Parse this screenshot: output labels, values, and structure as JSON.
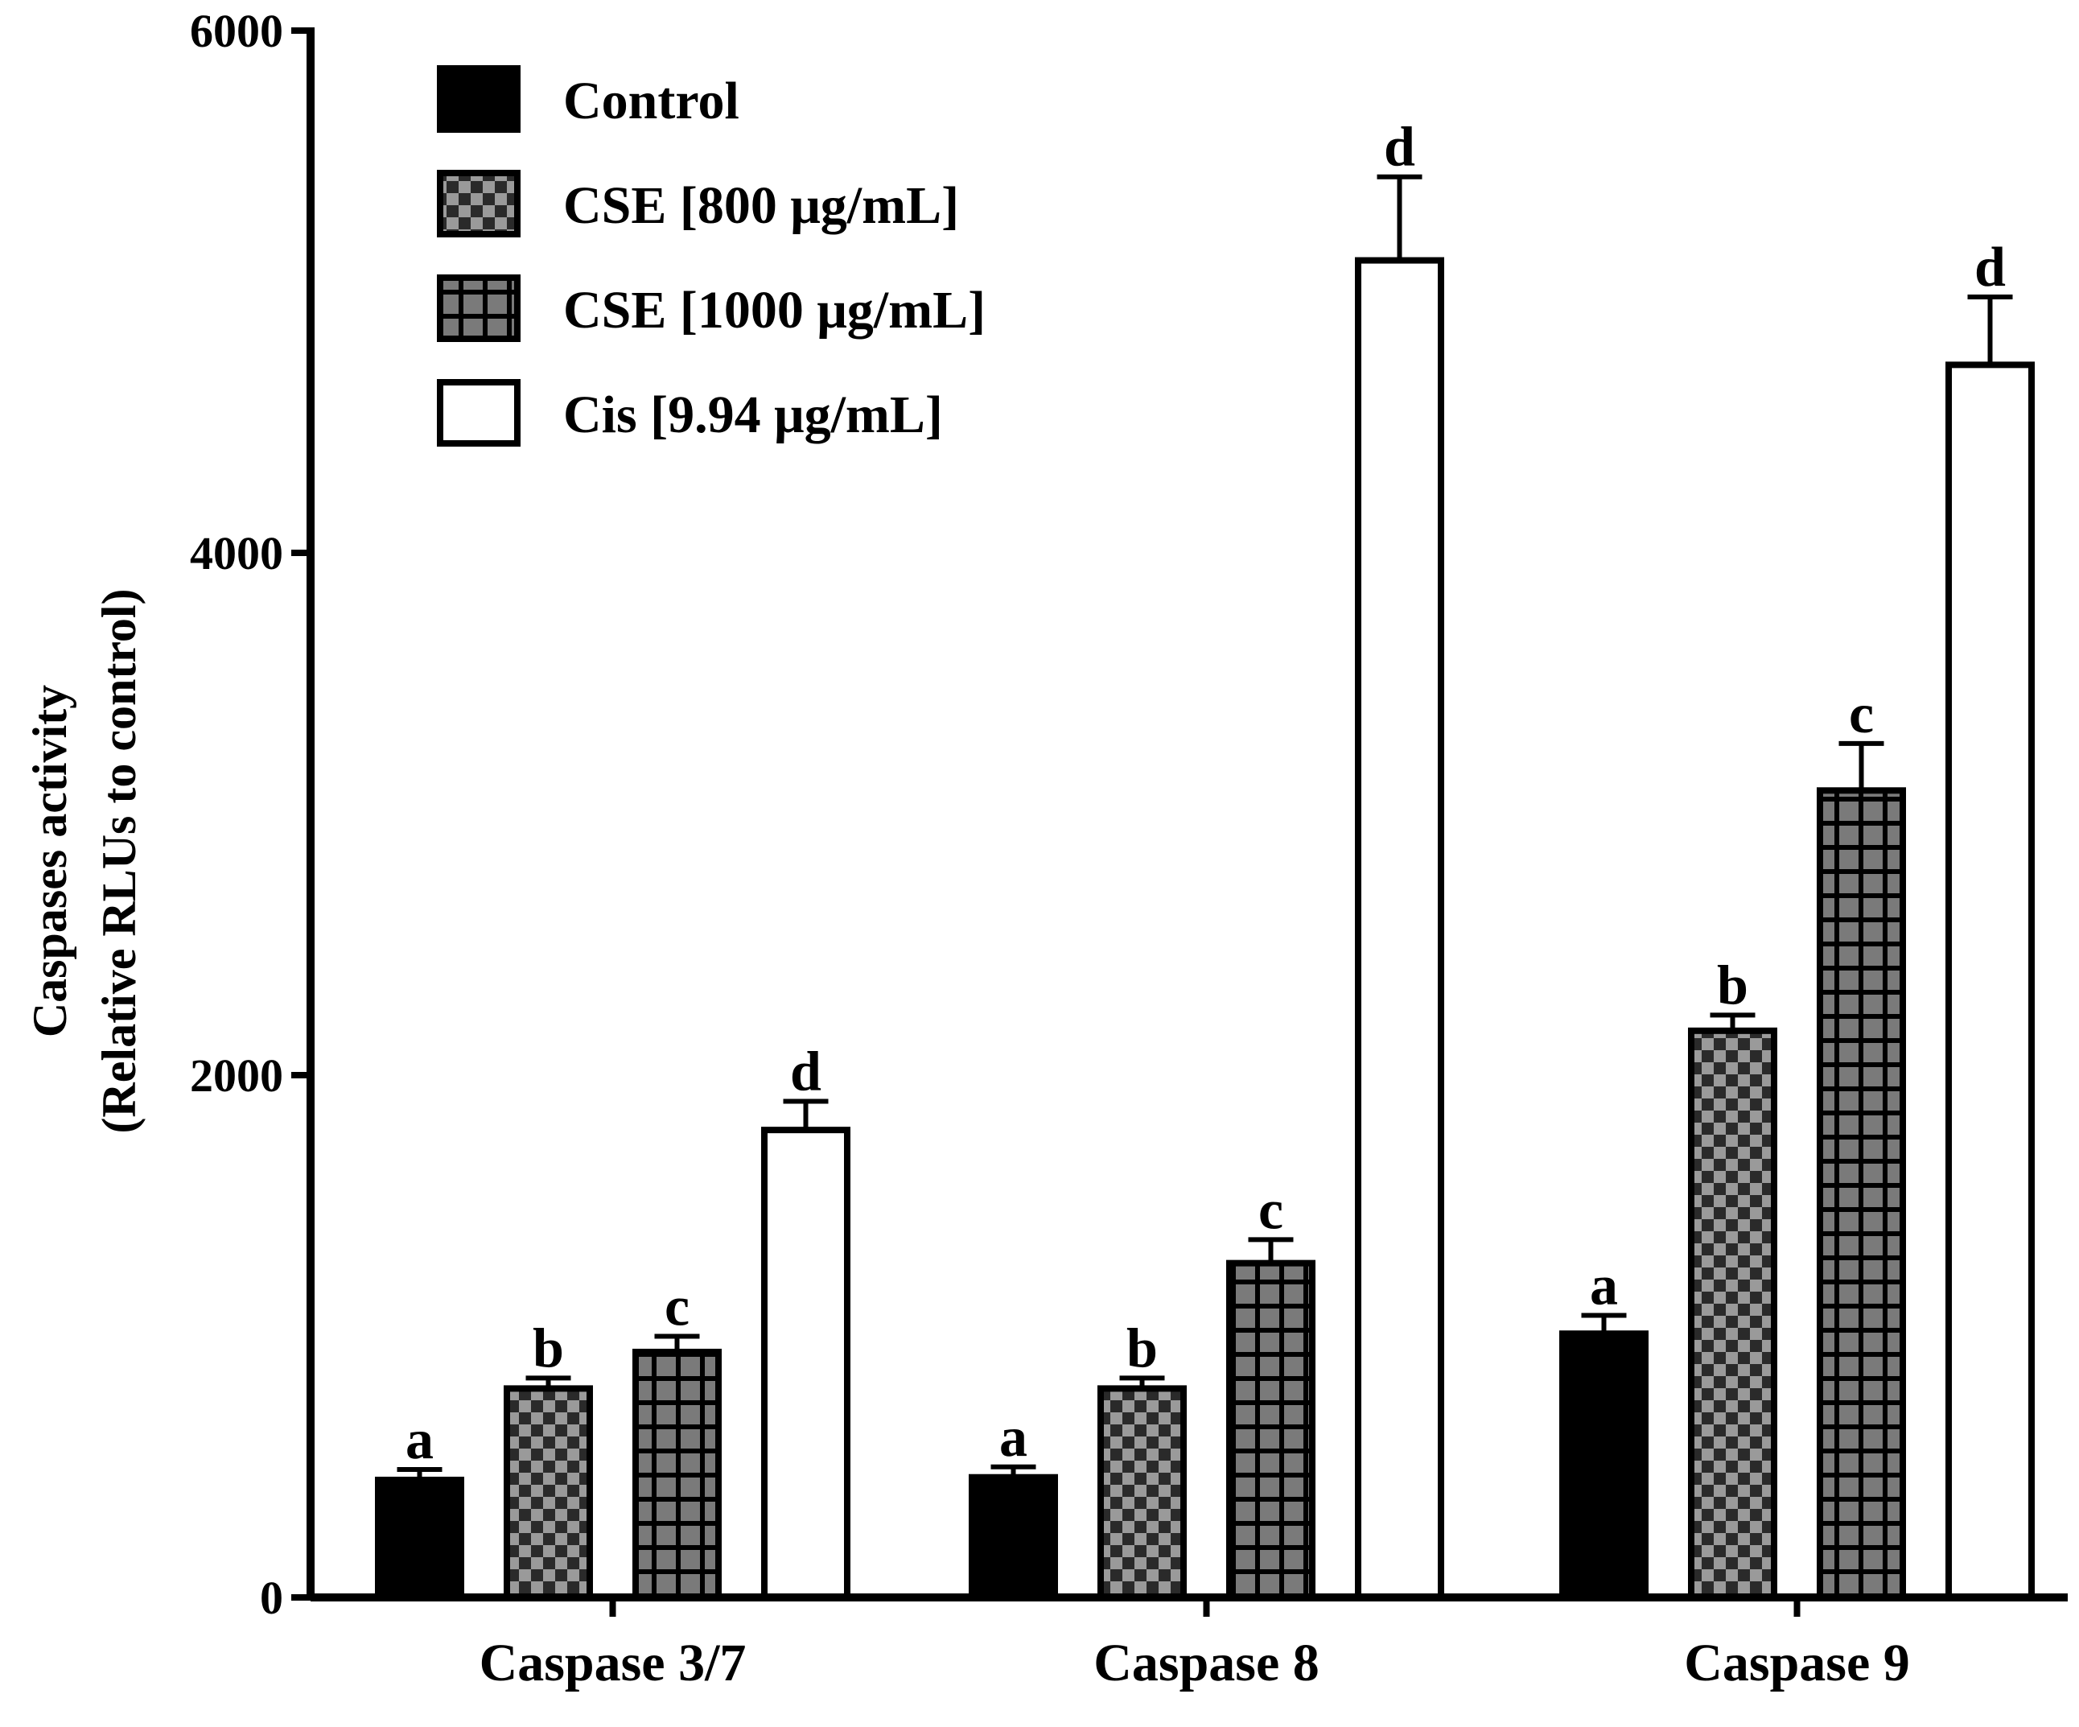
{
  "chart_data": {
    "type": "bar",
    "title": "",
    "xlabel": "",
    "ylabel": "Caspases activity",
    "ylabel_line2": "(Relative RLUs to control)",
    "ylim": [
      0,
      6000
    ],
    "yticks": [
      0,
      2000,
      4000,
      6000
    ],
    "ytick_labels": [
      "0",
      "2000",
      "4000",
      "6000"
    ],
    "categories": [
      "Caspase 3/7",
      "Caspase 8",
      "Caspase 9"
    ],
    "legend_position": "top-left",
    "series": [
      {
        "name": "Control",
        "fill": "solid-black",
        "values": [
          450,
          460,
          1010
        ],
        "errors": [
          40,
          40,
          70
        ],
        "sig": [
          "a",
          "a",
          "a"
        ]
      },
      {
        "name": "CSE [800 μg/mL]",
        "fill": "checker",
        "values": [
          800,
          800,
          2170
        ],
        "errors": [
          40,
          40,
          60
        ],
        "sig": [
          "b",
          "b",
          "b"
        ]
      },
      {
        "name": "CSE [1000 μg/mL]",
        "fill": "grid",
        "values": [
          940,
          1280,
          3090
        ],
        "errors": [
          60,
          90,
          180
        ],
        "sig": [
          "c",
          "c",
          "c"
        ]
      },
      {
        "name": "Cis [9.94 μg/mL]",
        "fill": "white",
        "values": [
          1790,
          5120,
          4720
        ],
        "errors": [
          110,
          320,
          260
        ],
        "sig": [
          "d",
          "d",
          "d"
        ]
      }
    ],
    "colors": {
      "axis": "#000000",
      "dark_fill": "#000000",
      "checker_light": "#9a9a9a",
      "checker_dark": "#2a2a2a",
      "grid_fill": "#7a7a7a",
      "grid_line": "#000000",
      "open_fill": "#ffffff"
    }
  }
}
